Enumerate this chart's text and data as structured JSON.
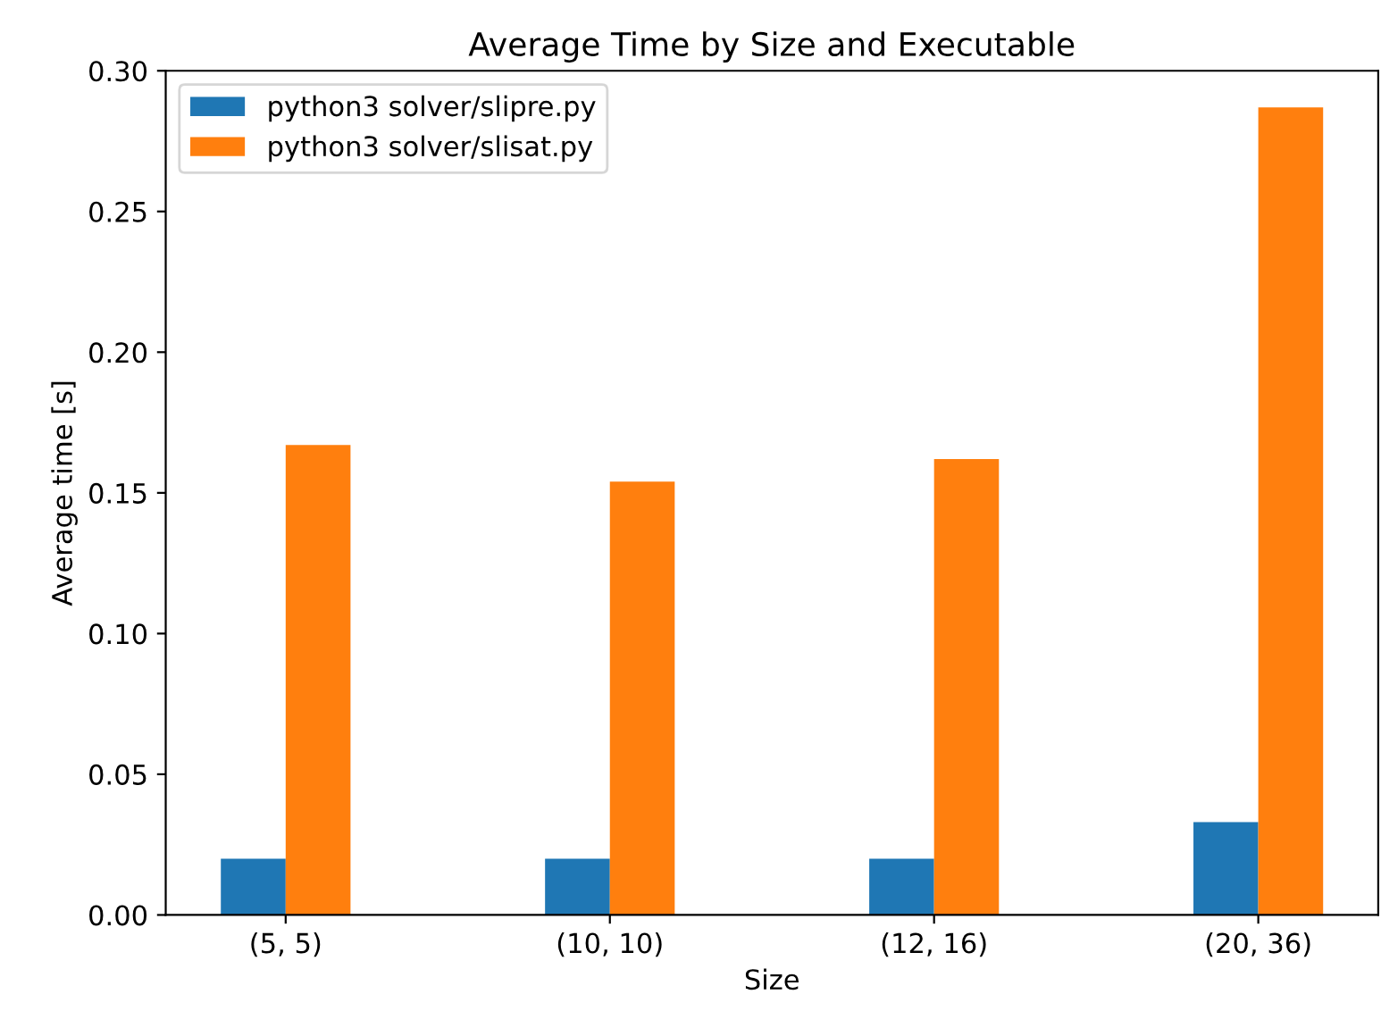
{
  "chart_data": {
    "type": "bar",
    "title": "Average Time by Size and Executable",
    "xlabel": "Size",
    "ylabel": "Average time [s]",
    "categories": [
      "(5, 5)",
      "(10, 10)",
      "(12, 16)",
      "(20, 36)"
    ],
    "series": [
      {
        "name": "python3 solver/slipre.py",
        "color": "#1f77b4",
        "values": [
          0.02,
          0.02,
          0.02,
          0.033
        ]
      },
      {
        "name": "python3 solver/slisat.py",
        "color": "#ff7f0e",
        "values": [
          0.167,
          0.154,
          0.162,
          0.287
        ]
      }
    ],
    "ylim": [
      0,
      0.3
    ],
    "yticks": [
      {
        "value": 0,
        "label": "0.00"
      },
      {
        "value": 0.05,
        "label": "0.05"
      },
      {
        "value": 0.1,
        "label": "0.10"
      },
      {
        "value": 0.15,
        "label": "0.15"
      },
      {
        "value": 0.2,
        "label": "0.20"
      },
      {
        "value": 0.25,
        "label": "0.25"
      },
      {
        "value": 0.3,
        "label": "0.30"
      }
    ],
    "legend": "top left",
    "grid": false
  }
}
